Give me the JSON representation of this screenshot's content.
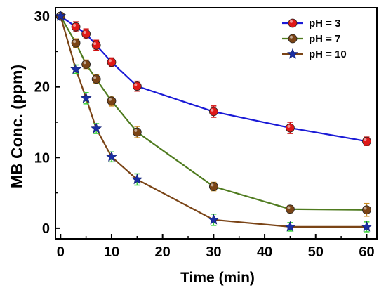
{
  "chart_data": {
    "type": "line",
    "xlabel": "Time (min)",
    "ylabel": "MB Conc. (ppm)",
    "xlim": [
      -1,
      62
    ],
    "ylim": [
      -1.5,
      31.2
    ],
    "xticks": [
      0,
      10,
      20,
      30,
      40,
      50,
      60
    ],
    "yticks": [
      0,
      10,
      20,
      30
    ],
    "x": [
      0,
      3,
      5,
      7,
      10,
      15,
      30,
      45,
      60
    ],
    "legend_position": "top-right",
    "grid": false,
    "series": [
      {
        "name": "pH = 3",
        "values": [
          30.0,
          28.5,
          27.5,
          25.9,
          23.5,
          20.1,
          16.5,
          14.2,
          12.3
        ],
        "errors": [
          0.3,
          0.7,
          0.7,
          0.7,
          0.6,
          0.7,
          0.8,
          0.8,
          0.6
        ],
        "line_color": "#1a1ad6",
        "marker_color": "#e01818",
        "error_color": "#d01010",
        "marker": "circle"
      },
      {
        "name": "pH = 7",
        "values": [
          30.0,
          26.2,
          23.2,
          21.1,
          18.0,
          13.6,
          5.9,
          2.7,
          2.6
        ],
        "errors": [
          0.3,
          0.6,
          0.6,
          0.6,
          0.7,
          0.8,
          0.6,
          0.5,
          0.9
        ],
        "line_color": "#4f7b1f",
        "marker_color": "#7a4416",
        "error_color": "#c88a20",
        "marker": "circle"
      },
      {
        "name": "pH = 10",
        "values": [
          30.0,
          22.5,
          18.4,
          14.1,
          10.1,
          6.9,
          1.2,
          0.2,
          0.2
        ],
        "errors": [
          0.3,
          0.6,
          0.8,
          0.7,
          0.7,
          0.8,
          0.8,
          0.6,
          0.7
        ],
        "line_color": "#7a4416",
        "marker_color": "#1c2fa3",
        "error_color": "#3ad13a",
        "marker": "star"
      }
    ]
  }
}
